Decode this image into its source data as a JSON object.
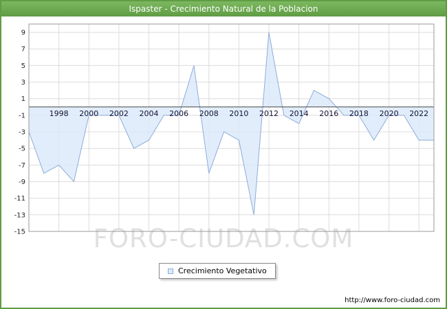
{
  "title": "Ispaster - Crecimiento Natural de la Poblacion",
  "watermark": "FORO-CIUDAD.COM",
  "legend": {
    "label": "Crecimiento Vegetativo"
  },
  "footer": {
    "url": "http://www.foro-ciudad.com"
  },
  "colors": {
    "header_green_top": "#7cb860",
    "header_green_bottom": "#5f9c43",
    "frame_green": "#5f9c43",
    "area_fill": "#dceafa",
    "area_stroke": "#8cacd8",
    "grid": "#dcdcdc",
    "plot_border": "#999999",
    "zero_line": "#444444",
    "watermark_gray": "#e0e0e0",
    "tick_text": "#222222",
    "x_label_text": "#111133"
  },
  "chart_data": {
    "type": "area",
    "title": "Ispaster - Crecimiento Natural de la Poblacion",
    "series_name": "Crecimiento Vegetativo",
    "years": [
      1996,
      1997,
      1998,
      1999,
      2000,
      2001,
      2002,
      2003,
      2004,
      2005,
      2006,
      2007,
      2008,
      2009,
      2010,
      2011,
      2012,
      2013,
      2014,
      2015,
      2016,
      2017,
      2018,
      2019,
      2020,
      2021,
      2022,
      2023
    ],
    "values": [
      -3,
      -8,
      -7,
      -9,
      -1,
      -1,
      -1,
      -5,
      -4,
      -1,
      -1,
      5,
      -8,
      -3,
      -4,
      -13,
      9,
      -1,
      -2,
      2,
      1,
      -1,
      -1,
      -4,
      -1,
      -1,
      -4,
      -4
    ],
    "xticks": [
      1998,
      2000,
      2002,
      2004,
      2006,
      2008,
      2010,
      2012,
      2014,
      2016,
      2018,
      2020,
      2022
    ],
    "yticks": [
      9,
      7,
      5,
      3,
      1,
      -1,
      -3,
      -5,
      -7,
      -9,
      -11,
      -13,
      -15
    ],
    "xlim": [
      1996,
      2023
    ],
    "ylim": [
      -15,
      10
    ],
    "baseline": 0,
    "grid": true,
    "legend_position": "bottom-center"
  }
}
